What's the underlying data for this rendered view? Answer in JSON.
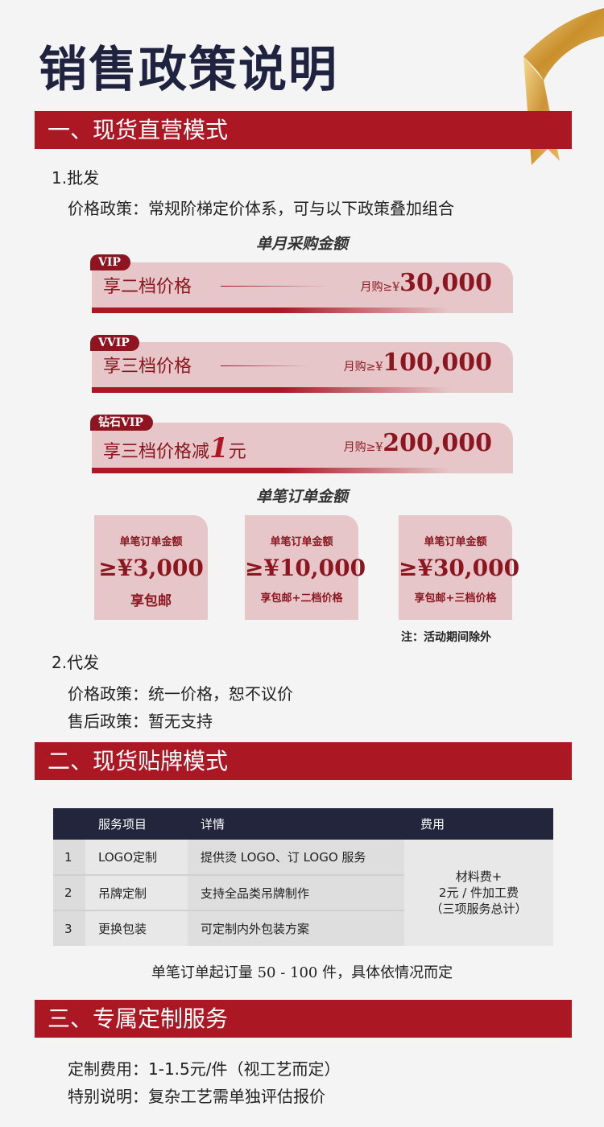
{
  "page_title": "销售政策说明",
  "accent_color": "#ac1724",
  "sections": [
    {
      "title": "一、现货直营模式"
    },
    {
      "title": "二、现货贴牌模式"
    },
    {
      "title": "三、专属定制服务"
    }
  ],
  "wholesale": {
    "heading": "1.批发",
    "policy": "价格政策：常规阶梯定价体系，可与以下政策叠加组合",
    "monthly_caption": "单月采购金额",
    "tiers": [
      {
        "badge": "VIP",
        "label": "享二档价格",
        "prefix": "月购≥¥",
        "amount": "30,000"
      },
      {
        "badge": "VVIP",
        "label": "享三档价格",
        "prefix": "月购≥¥",
        "amount": "100,000"
      },
      {
        "badge": "钻石VIP",
        "label": "享三档价格减",
        "label_big": "1",
        "label_tail": "元",
        "prefix": "月购≥¥",
        "amount": "200,000"
      }
    ],
    "order_caption": "单笔订单金额",
    "orders": [
      {
        "title": "单笔订单金额",
        "amount": "≥¥3,000",
        "benefit": "享包邮"
      },
      {
        "title": "单笔订单金额",
        "amount": "≥¥10,000",
        "benefit": "享包邮+二档价格"
      },
      {
        "title": "单笔订单金额",
        "amount": "≥¥30,000",
        "benefit": "享包邮+三档价格"
      }
    ],
    "note": "注：活动期间除外"
  },
  "dropship": {
    "heading": "2.代发",
    "price": "价格政策：统一价格，恕不议价",
    "after_sale": "售后政策：暂无支持"
  },
  "oem_table": {
    "headers": [
      "",
      "服务项目",
      "详情",
      "费用"
    ],
    "rows": [
      {
        "no": "1",
        "item": "LOGO定制",
        "detail": "提供烫 LOGO、订 LOGO 服务"
      },
      {
        "no": "2",
        "item": "吊牌定制",
        "detail": "支持全品类吊牌制作"
      },
      {
        "no": "3",
        "item": "更换包装",
        "detail": "可定制内外包装方案"
      }
    ],
    "fee": [
      "材料费+",
      "2元 / 件加工费",
      "（三项服务总计）"
    ],
    "moq": "单笔订单起订量 50 - 100 件，具体依情况而定"
  },
  "custom": {
    "fee": "定制费用：1-1.5元/件（视工艺而定）",
    "note": "特别说明：复杂工艺需单独评估报价"
  }
}
